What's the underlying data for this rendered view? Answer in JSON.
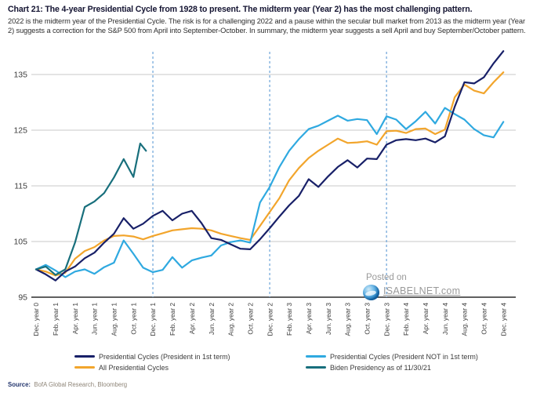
{
  "header": {
    "title": "Chart 21: The 4-year Presidential Cycle from 1928 to present. The midterm year (Year 2) has the most challenging pattern.",
    "subtitle": "2022 is the midterm year of the Presidential Cycle. The risk is for a challenging 2022 and a pause within the secular bull market from 2013 as the midterm year (Year 2) suggests a correction for the S&P 500 from April into September-October. In summary, the midterm year suggests a sell April and buy September/October pattern."
  },
  "watermark": {
    "line1": "Posted on",
    "line2": "ISABELNET.com",
    "globe_icon": "globe-icon"
  },
  "source": {
    "label": "Source:",
    "text": "BofA Global Research, Bloomberg"
  },
  "legend": {
    "items": [
      {
        "label": "Presidential Cycles (President in 1st term)",
        "color": "#182068"
      },
      {
        "label": "Presidential Cycles (President NOT in 1st term)",
        "color": "#2fa9e0"
      },
      {
        "label": "All Presidential Cycles",
        "color": "#f2a52c"
      },
      {
        "label": "Biden Presidency as of 11/30/21",
        "color": "#186f7c"
      }
    ]
  },
  "chart_data": {
    "type": "line",
    "title": "S&P 500 4-year Presidential Cycle composite (indexed, Dec. year 0 = 100)",
    "x_unit": "months from December of year 0, bimonthly tick labels",
    "x_tick_labels": [
      "Dec. year 0",
      "Feb. year 1",
      "Apr. year 1",
      "Jun. year 1",
      "Aug. year 1",
      "Oct. year 1",
      "Dec. year 1",
      "Feb. year 2",
      "Apr. year 2",
      "Jun. year 2",
      "Aug. year 2",
      "Oct. year 2",
      "Dec. year 2",
      "Feb. year 3",
      "Apr. year 3",
      "Jun. year 3",
      "Aug. year 3",
      "Oct. year 3",
      "Dec. year 3",
      "Feb. year 4",
      "Apr. year 4",
      "Jun. year 4",
      "Aug. year 4",
      "Oct. year 4",
      "Dec. year 4"
    ],
    "y_ticks": [
      95,
      105,
      115,
      125,
      135
    ],
    "ylim": [
      95,
      140.5
    ],
    "grid": "horizontal",
    "dashed_vlines_months": [
      12,
      24,
      36
    ],
    "legend_position": "bottom",
    "series": [
      {
        "name": "All Presidential Cycles",
        "color": "#f2a52c",
        "x_months": null,
        "values": [
          100,
          99.6,
          98.9,
          99.4,
          101.9,
          103.3,
          104.0,
          105.2,
          106.0,
          106.1,
          105.9,
          105.4,
          106.0,
          106.5,
          107.0,
          107.2,
          107.4,
          107.3,
          107.0,
          106.4,
          106.0,
          105.6,
          105.3,
          107.8,
          110.3,
          112.8,
          116.0,
          118.2,
          120.0,
          121.3,
          122.4,
          123.5,
          122.7,
          122.8,
          123.0,
          122.4,
          124.8,
          124.9,
          124.5,
          125.2,
          125.3,
          124.3,
          125.1,
          130.9,
          133.2,
          132.1,
          131.6,
          133.6,
          135.4
        ]
      },
      {
        "name": "Presidential Cycles (President NOT in 1st term)",
        "color": "#2fa9e0",
        "x_months": null,
        "values": [
          100,
          100.8,
          99.8,
          98.6,
          99.6,
          100.0,
          99.2,
          100.4,
          101.2,
          105.2,
          102.8,
          100.3,
          99.5,
          99.9,
          102.2,
          100.3,
          101.6,
          102.1,
          102.5,
          104.3,
          104.9,
          105.2,
          104.8,
          112.0,
          114.8,
          118.4,
          121.3,
          123.4,
          125.2,
          125.8,
          126.7,
          127.6,
          126.7,
          127.0,
          126.8,
          124.3,
          127.5,
          126.9,
          125.2,
          126.6,
          128.3,
          126.2,
          129.0,
          127.9,
          126.9,
          125.2,
          124.1,
          123.7,
          126.5
        ]
      },
      {
        "name": "Presidential Cycles (President in 1st term)",
        "color": "#182068",
        "x_months": null,
        "values": [
          100,
          99.1,
          98.0,
          99.6,
          100.5,
          102.0,
          103.0,
          104.8,
          106.4,
          109.2,
          107.3,
          108.2,
          109.6,
          110.5,
          108.8,
          110.0,
          110.5,
          108.3,
          105.6,
          105.3,
          104.5,
          103.7,
          103.6,
          105.4,
          107.4,
          109.5,
          111.5,
          113.2,
          116.2,
          114.8,
          116.7,
          118.4,
          119.6,
          118.3,
          119.9,
          119.8,
          122.4,
          123.2,
          123.4,
          123.2,
          123.5,
          122.8,
          123.9,
          129.2,
          133.6,
          133.4,
          134.5,
          137.0,
          139.2
        ]
      },
      {
        "name": "Biden Presidency as of 11/30/21",
        "color": "#186f7c",
        "x_months": [
          0,
          1,
          2,
          3,
          4,
          5,
          6,
          7,
          8,
          9,
          10,
          10.7,
          11.3
        ],
        "values": [
          100,
          100.5,
          99.0,
          100.0,
          104.8,
          111.2,
          112.2,
          113.7,
          116.5,
          119.8,
          116.6,
          122.6,
          121.3
        ]
      }
    ]
  }
}
